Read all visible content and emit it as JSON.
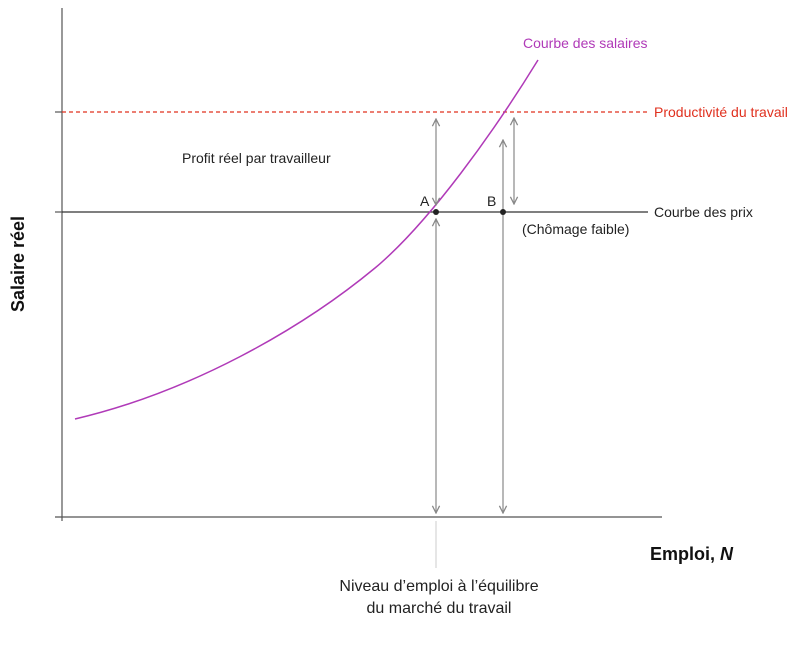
{
  "diagram": {
    "axes": {
      "y_label": "Salaire réel",
      "x_label_main": "Emploi, ",
      "x_label_var": "N"
    },
    "curves": {
      "wage_curve": "Courbe des salaires",
      "productivity": "Productivité du travail",
      "price_curve": "Courbe des prix"
    },
    "annotations": {
      "profit": "Profit réel par travailleur",
      "low_unemployment": "(Chômage faible)",
      "point_a": "A",
      "point_b": "B",
      "equilibrium_line1": "Niveau d’emploi à l’équilibre",
      "equilibrium_line2": "du marché du travail"
    },
    "colors": {
      "wage_curve": "#b03ab8",
      "productivity": "#e0301e",
      "axis": "#555555",
      "arrow": "#888888"
    }
  }
}
